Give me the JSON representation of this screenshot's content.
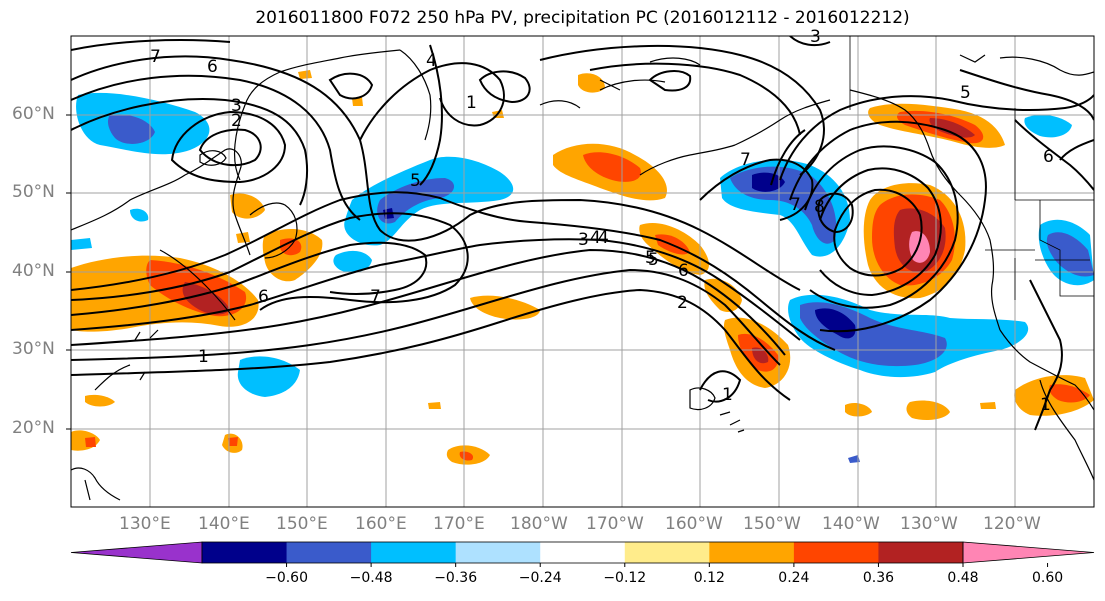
{
  "title": "2016011800 F072 250 hPa PV, precipitation PC (2016012112 - 2016012212)",
  "lat_labels": [
    "60°N",
    "50°N",
    "40°N",
    "30°N",
    "20°N"
  ],
  "lon_labels": [
    "130°E",
    "140°E",
    "150°E",
    "160°E",
    "170°E",
    "180°W",
    "170°W",
    "160°W",
    "150°W",
    "140°W",
    "130°W",
    "120°W"
  ],
  "colorbar": {
    "colors": [
      "#9932CC",
      "#00008B",
      "#3A5BCB",
      "#00BFFF",
      "#AEE1FF",
      "#FFFFFF",
      "#FFEC8B",
      "#FFA500",
      "#FF4500",
      "#B22222",
      "#FF85B4"
    ],
    "tick_labels": [
      "−0.60",
      "−0.48",
      "−0.36",
      "−0.24",
      "−0.12",
      "0.12",
      "0.24",
      "0.36",
      "0.48",
      "0.60"
    ]
  },
  "contour_labels": [
    "7",
    "6",
    "3",
    "2",
    "1",
    "4",
    "5",
    "4",
    "7",
    "5",
    "3",
    "4",
    "5",
    "6",
    "2",
    "7",
    "8",
    "6",
    "1",
    "1",
    "1",
    "5",
    "6",
    "3",
    "7"
  ]
}
